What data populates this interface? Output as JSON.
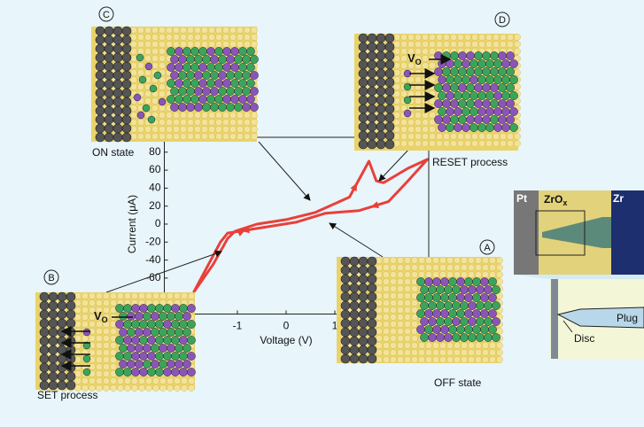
{
  "chart_data": {
    "type": "line",
    "x_label": "Voltage (V)",
    "y_label": "Current (μA)",
    "xlim": [
      -2.5,
      3.0
    ],
    "ylim": [
      -100,
      90
    ],
    "xticks": [
      -1,
      0,
      1
    ],
    "yticks": [
      80,
      60,
      40,
      20,
      0,
      -20,
      -40,
      -60
    ],
    "series": [
      {
        "color": "#e8403a",
        "x": [
          -1.9,
          -1.5,
          -1.2,
          -1.05,
          -0.6,
          0,
          0.6,
          1.3,
          1.55,
          1.7,
          1.85,
          2.0,
          2.5,
          2.9,
          2.5,
          2.1,
          1.5,
          0.8,
          0.2,
          -0.5,
          -1.2,
          -1.35,
          -1.9
        ],
        "values": [
          -76,
          -45,
          -16,
          -8,
          0,
          5,
          13,
          30,
          55,
          70,
          48,
          46,
          62,
          72,
          48,
          25,
          15,
          12,
          2,
          -4,
          -10,
          -20,
          -76
        ]
      }
    ],
    "panels": [
      {
        "letter": "C",
        "caption": "ON state"
      },
      {
        "letter": "D",
        "caption": "RESET process"
      },
      {
        "letter": "B",
        "caption": "SET process"
      },
      {
        "letter": "A",
        "caption": "OFF state"
      }
    ],
    "vacancy_label": {
      "main": "V",
      "sub": "O"
    },
    "inset": {
      "left": "Pt",
      "middle": "ZrO",
      "middle_sub": "x",
      "right": "Zr",
      "disc": "Disc",
      "plug": "Plug"
    }
  }
}
